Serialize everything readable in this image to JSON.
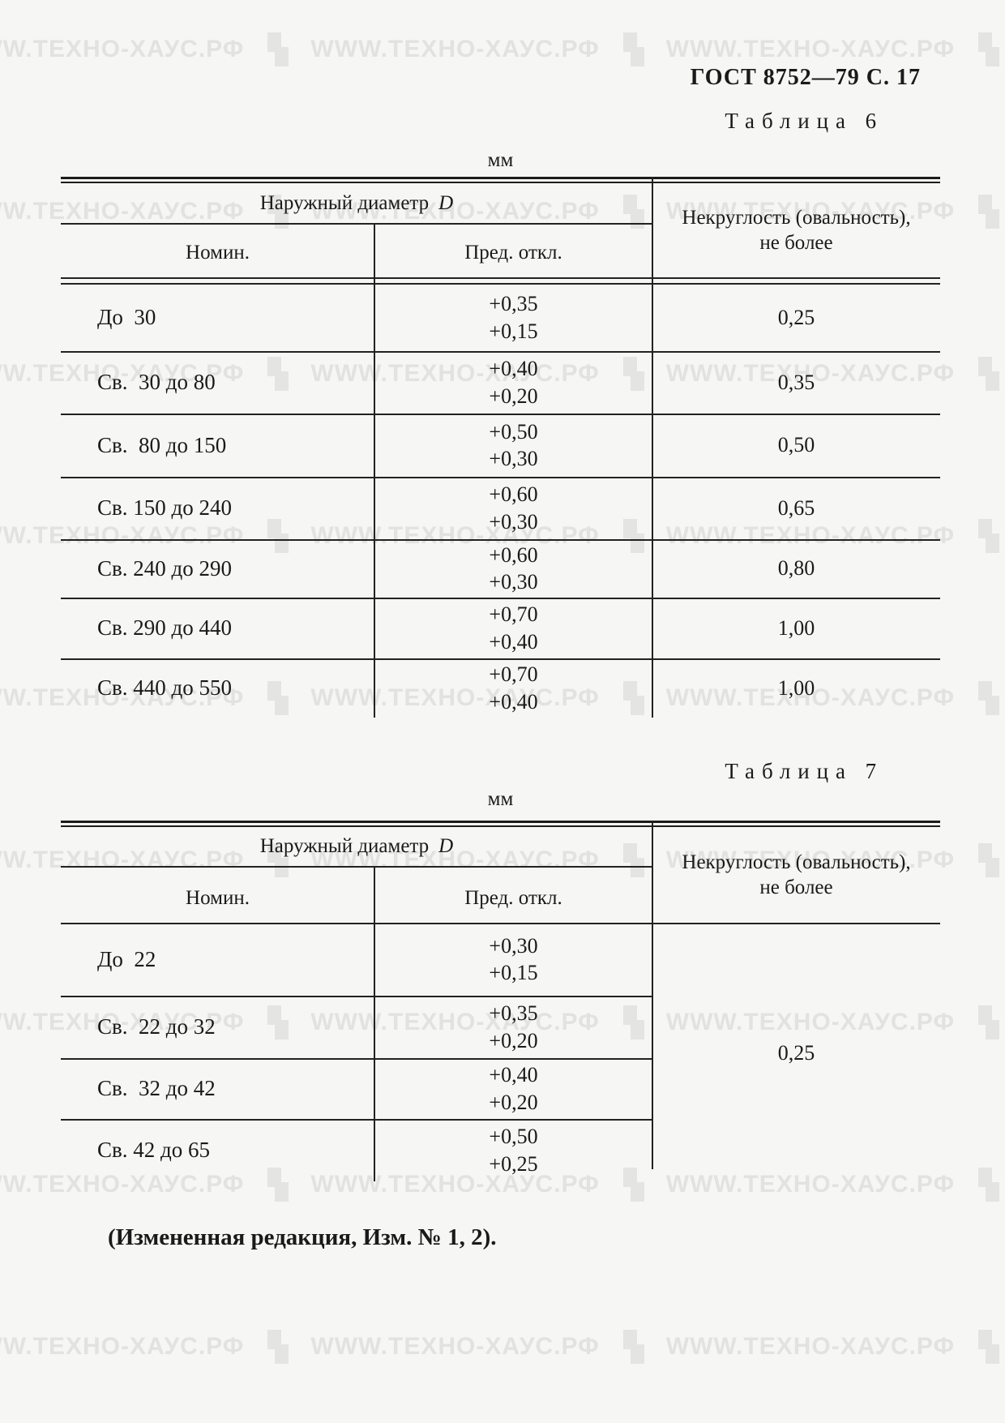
{
  "page": {
    "header": "ГОСТ 8752—79 С. 17",
    "footnote": "(Измененная редакция, Изм. № 1, 2)."
  },
  "watermark": {
    "text": "WWW.ТЕХНО-ХАУС.РФ",
    "icon": "recycle-icon",
    "color": "#e2e2e1"
  },
  "colors": {
    "paper": "#f6f6f4",
    "ink": "#1a1a1a",
    "rule": "#222222"
  },
  "tables": [
    {
      "caption": "Таблица 6",
      "unit": "мм",
      "header": {
        "group": "Наружный диаметр",
        "group_symbol": "D",
        "col_nominal": "Номин.",
        "col_deviation": "Пред. откл.",
        "col_ovality_line1": "Некруглость (овальность),",
        "col_ovality_line2": "не более"
      },
      "rows": [
        {
          "nominal": "До  30",
          "dev_upper": "+0,35",
          "dev_lower": "+0,15",
          "ovality": "0,25"
        },
        {
          "nominal": "Св.  30 до 80",
          "dev_upper": "+0,40",
          "dev_lower": "+0,20",
          "ovality": "0,35"
        },
        {
          "nominal": "Св.  80 до 150",
          "dev_upper": "+0,50",
          "dev_lower": "+0,30",
          "ovality": "0,50"
        },
        {
          "nominal": "Св. 150 до 240",
          "dev_upper": "+0,60",
          "dev_lower": "+0,30",
          "ovality": "0,65"
        },
        {
          "nominal": "Св. 240 до 290",
          "dev_upper": "+0,60",
          "dev_lower": "+0,30",
          "ovality": "0,80"
        },
        {
          "nominal": "Св. 290 до 440",
          "dev_upper": "+0,70",
          "dev_lower": "+0,40",
          "ovality": "1,00"
        },
        {
          "nominal": "Св. 440 до 550",
          "dev_upper": "+0,70",
          "dev_lower": "+0,40",
          "ovality": "1,00"
        }
      ]
    },
    {
      "caption": "Таблица 7",
      "unit": "мм",
      "header": {
        "group": "Наружный диаметр",
        "group_symbol": "D",
        "col_nominal": "Номин.",
        "col_deviation": "Пред. откл.",
        "col_ovality_line1": "Некруглость (овальность),",
        "col_ovality_line2": "не более"
      },
      "rows": [
        {
          "nominal": "До  22",
          "dev_upper": "+0,30",
          "dev_lower": "+0,15"
        },
        {
          "nominal": "Св.  22 до 32",
          "dev_upper": "+0,35",
          "dev_lower": "+0,20"
        },
        {
          "nominal": "Св.  32 до 42",
          "dev_upper": "+0,40",
          "dev_lower": "+0,20"
        },
        {
          "nominal": "Св. 42 до 65",
          "dev_upper": "+0,50",
          "dev_lower": "+0,25"
        }
      ],
      "merged_ovality": "0,25"
    }
  ]
}
